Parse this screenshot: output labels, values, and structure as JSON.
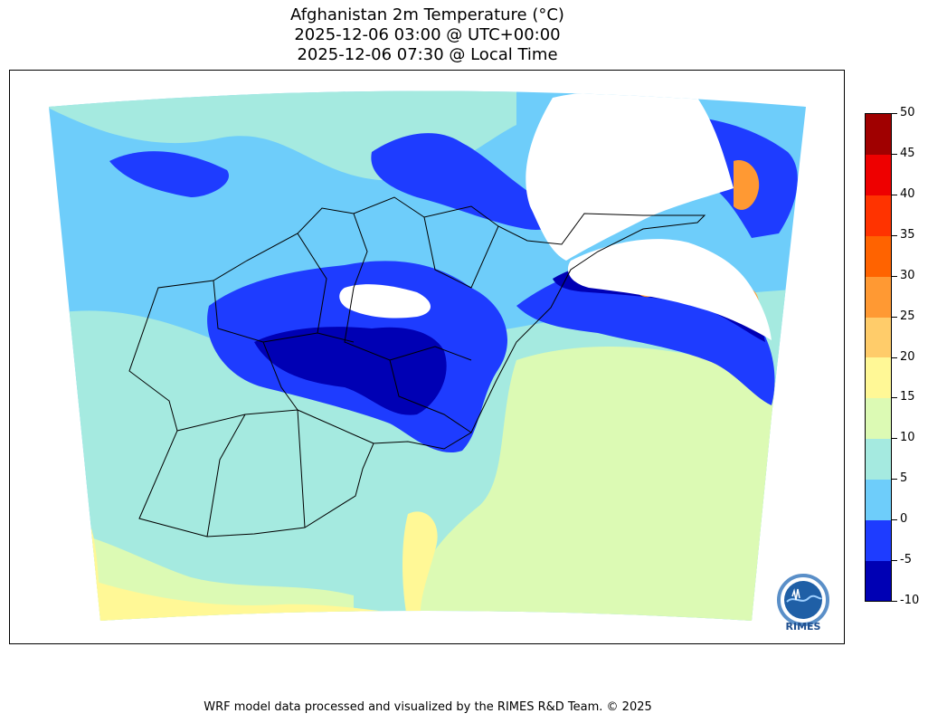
{
  "title": {
    "line1": "Afghanistan 2m Temperature (°C)",
    "line2": "2025-12-06 03:00 @ UTC+00:00",
    "line3": "2025-12-06 07:30 @ Local Time"
  },
  "colorbar": {
    "levels": [
      -10,
      -5,
      0,
      5,
      10,
      15,
      20,
      25,
      30,
      35,
      40,
      45,
      50
    ],
    "labels": [
      "-10",
      "-5",
      "0",
      "5",
      "10",
      "15",
      "20",
      "25",
      "30",
      "35",
      "40",
      "45",
      "50"
    ],
    "colors": [
      "#0000b4",
      "#1e3cff",
      "#6ecdfa",
      "#a5eae0",
      "#dcfab4",
      "#fff896",
      "#ffcc6a",
      "#ff9933",
      "#ff6300",
      "#ff3300",
      "#ee0000",
      "#a00000"
    ]
  },
  "palette": {
    "deep_blue": "#0000b4",
    "blue": "#1e3cff",
    "light_blue": "#6ecdfa",
    "aqua": "#a5eae0",
    "pale_green": "#dcfab4",
    "pale_yellow": "#fff896",
    "orange": "#ff9933"
  },
  "logo": {
    "text": "RIMES",
    "icon": "rimes-globe-logo-icon"
  },
  "footer": {
    "credit": "WRF model data processed and visualized by the RIMES R&D Team. © 2025"
  }
}
